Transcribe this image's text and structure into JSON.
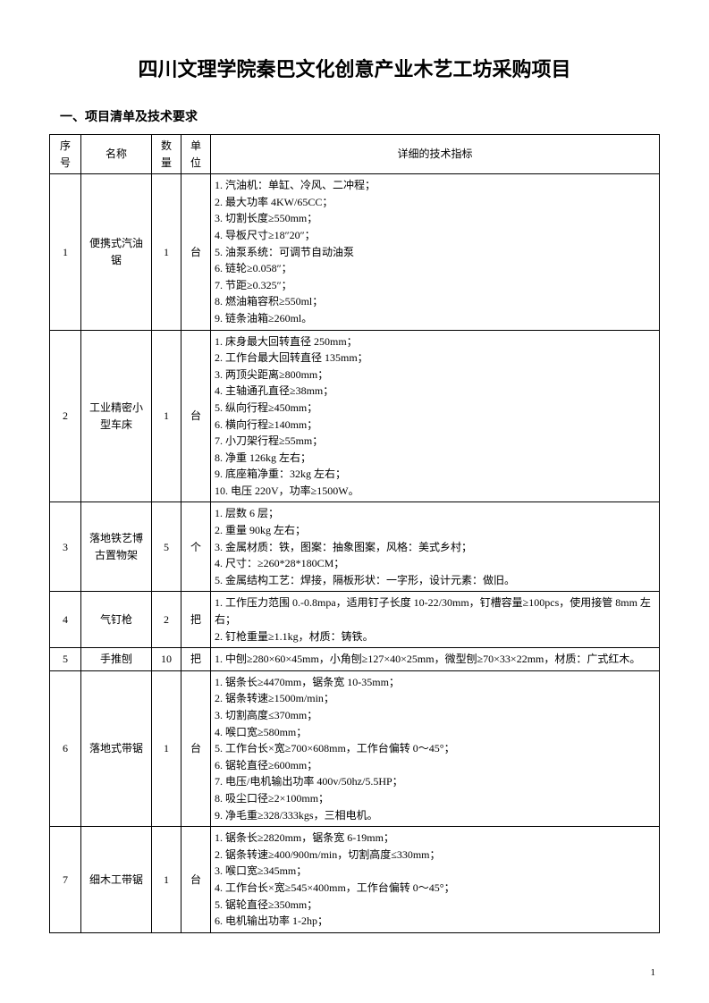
{
  "document": {
    "title": "四川文理学院秦巴文化创意产业木艺工坊采购项目",
    "section_heading": "一、项目清单及技术要求",
    "page_number": "1"
  },
  "table": {
    "headers": {
      "seq": "序\n号",
      "name": "名称",
      "qty": "数\n量",
      "unit": "单\n位",
      "spec": "详细的技术指标"
    },
    "rows": [
      {
        "seq": "1",
        "name": "便携式汽油锯",
        "qty": "1",
        "unit": "台",
        "specs": [
          "1. 汽油机：单缸、冷风、二冲程；",
          "2. 最大功率 4KW/65CC；",
          "3. 切割长度≥550mm；",
          "4. 导板尺寸≥18″20″；",
          "5. 油泵系统：可调节自动油泵",
          "6. 链轮≥0.058″；",
          "7. 节距≥0.325″；",
          "8. 燃油箱容积≥550ml；",
          "9. 链条油箱≥260ml。"
        ]
      },
      {
        "seq": "2",
        "name": "工业精密小型车床",
        "qty": "1",
        "unit": "台",
        "specs": [
          "1. 床身最大回转直径 250mm；",
          "2. 工作台最大回转直径 135mm；",
          "3. 两顶尖距离≥800mm；",
          "4. 主轴通孔直径≥38mm；",
          "5. 纵向行程≥450mm；",
          "6. 横向行程≥140mm；",
          "7. 小刀架行程≥55mm；",
          "8. 净重 126kg 左右；",
          "9. 底座箱净重：32kg 左右；",
          "10. 电压 220V，功率≥1500W。"
        ]
      },
      {
        "seq": "3",
        "name": "落地铁艺博古置物架",
        "qty": "5",
        "unit": "个",
        "specs": [
          "1. 层数 6 层；",
          "2. 重量 90kg 左右；",
          "3. 金属材质：铁，图案：抽象图案，风格：美式乡村；",
          "4. 尺寸：≥260*28*180CM；",
          "5. 金属结构工艺：焊接，隔板形状：一字形，设计元素：做旧。"
        ]
      },
      {
        "seq": "4",
        "name": "气钉枪",
        "qty": "2",
        "unit": "把",
        "specs": [
          "1. 工作压力范围 0.-0.8mpa，适用钉子长度 10-22/30mm，钉槽容量≥100pcs，使用接管 8mm 左右；",
          "2. 钉枪重量≥1.1kg，材质：铸铁。"
        ]
      },
      {
        "seq": "5",
        "name": "手推刨",
        "qty": "10",
        "unit": "把",
        "specs": [
          "1. 中刨≥280×60×45mm，小角刨≥127×40×25mm，微型刨≥70×33×22mm，材质：广式红木。"
        ]
      },
      {
        "seq": "6",
        "name": "落地式带锯",
        "qty": "1",
        "unit": "台",
        "specs": [
          "1. 锯条长≥4470mm，锯条宽 10-35mm；",
          "2. 锯条转速≥1500m/min；",
          "3. 切割高度≤370mm；",
          "4. 喉口宽≥580mm；",
          "5. 工作台长×宽≥700×608mm，工作台偏转 0～45°；",
          "6. 锯轮直径≥600mm；",
          "7. 电压/电机输出功率 400v/50hz/5.5HP；",
          "8. 吸尘口径≥2×100mm；",
          "9. 净毛重≥328/333kgs，三相电机。"
        ]
      },
      {
        "seq": "7",
        "name": "细木工带锯",
        "qty": "1",
        "unit": "台",
        "specs": [
          "1. 锯条长≥2820mm，锯条宽 6-19mm；",
          "2. 锯条转速≥400/900m/min，切割高度≤330mm；",
          "3. 喉口宽≥345mm；",
          "4. 工作台长×宽≥545×400mm，工作台偏转 0～45°；",
          "5. 锯轮直径≥350mm；",
          "6. 电机输出功率 1-2hp；"
        ]
      }
    ]
  }
}
